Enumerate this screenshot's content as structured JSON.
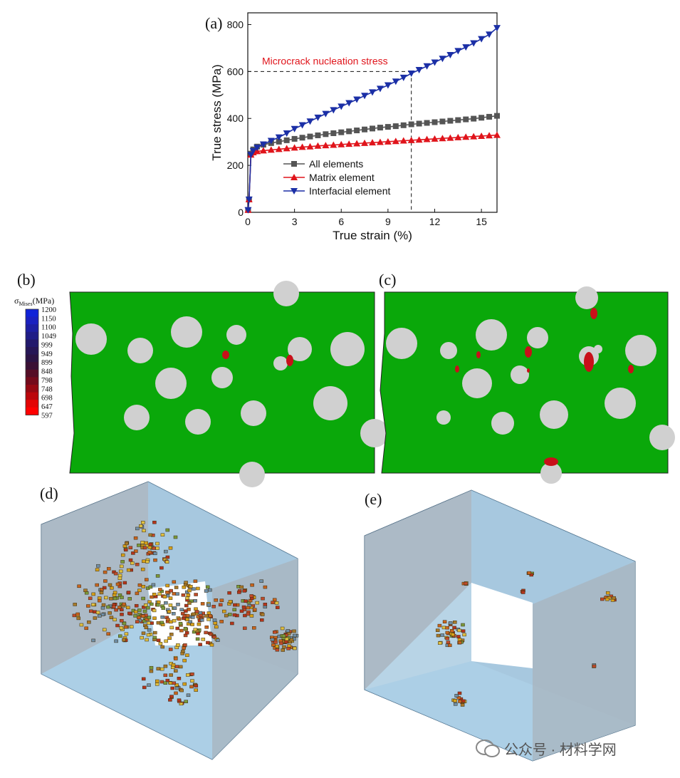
{
  "panels": {
    "a": "(a)",
    "b": "(b)",
    "c": "(c)",
    "d": "(d)",
    "e": "(e)"
  },
  "chart_data": {
    "type": "line",
    "xlabel": "True strain (%)",
    "ylabel": "True stress (MPa)",
    "xlim": [
      0,
      16
    ],
    "ylim": [
      0,
      850
    ],
    "xticks": [
      0,
      3,
      6,
      9,
      12,
      15
    ],
    "yticks": [
      0,
      200,
      400,
      600,
      800
    ],
    "grid": false,
    "legend_position": "lower-center",
    "annotation": {
      "text": "Microcrack nucleation stress",
      "stress": 600,
      "strain": 10.5,
      "color": "#e0141b"
    },
    "series": [
      {
        "name": "All elements",
        "color": "#555555",
        "marker": "square",
        "x": [
          0.02,
          0.08,
          0.2,
          0.35,
          0.6,
          1.0,
          1.5,
          2.0,
          2.5,
          3.0,
          3.5,
          4.0,
          4.5,
          5.0,
          5.5,
          6.0,
          6.5,
          7.0,
          7.5,
          8.0,
          8.5,
          9.0,
          9.5,
          10.0,
          10.5,
          11.0,
          11.5,
          12.0,
          12.5,
          13.0,
          13.5,
          14.0,
          14.5,
          15.0,
          15.5,
          16.0
        ],
        "y": [
          10,
          55,
          250,
          268,
          280,
          288,
          295,
          301,
          307,
          313,
          318,
          323,
          328,
          333,
          337,
          341,
          345,
          349,
          353,
          357,
          361,
          364,
          367,
          371,
          375,
          378,
          381,
          384,
          387,
          390,
          393,
          396,
          399,
          403,
          407,
          411
        ]
      },
      {
        "name": "Matrix element",
        "color": "#e0141b",
        "marker": "triangle-up",
        "x": [
          0.02,
          0.08,
          0.2,
          0.35,
          0.6,
          1.0,
          1.5,
          2.0,
          2.5,
          3.0,
          3.5,
          4.0,
          4.5,
          5.0,
          5.5,
          6.0,
          6.5,
          7.0,
          7.5,
          8.0,
          8.5,
          9.0,
          9.5,
          10.0,
          10.5,
          11.0,
          11.5,
          12.0,
          12.5,
          13.0,
          13.5,
          14.0,
          14.5,
          15.0,
          15.5,
          16.0
        ],
        "y": [
          10,
          55,
          245,
          255,
          260,
          263,
          266,
          269,
          272,
          275,
          278,
          280,
          283,
          285,
          287,
          289,
          291,
          293,
          295,
          297,
          299,
          301,
          303,
          305,
          307,
          309,
          311,
          313,
          315,
          317,
          319,
          321,
          323,
          325,
          327,
          329
        ]
      },
      {
        "name": "Interfacial element",
        "color": "#1b2fa6",
        "marker": "triangle-down",
        "x": [
          0.02,
          0.08,
          0.2,
          0.35,
          0.6,
          1.0,
          1.5,
          2.0,
          2.5,
          3.0,
          3.5,
          4.0,
          4.5,
          5.0,
          5.5,
          6.0,
          6.5,
          7.0,
          7.5,
          8.0,
          8.5,
          9.0,
          9.5,
          10.0,
          10.5,
          11.0,
          11.5,
          12.0,
          12.5,
          13.0,
          13.5,
          14.0,
          14.5,
          15.0,
          15.5,
          16.0
        ],
        "y": [
          10,
          55,
          245,
          262,
          276,
          290,
          305,
          320,
          337,
          356,
          372,
          388,
          404,
          420,
          436,
          451,
          466,
          481,
          497,
          512,
          527,
          542,
          558,
          574,
          592,
          607,
          623,
          639,
          655,
          671,
          688,
          704,
          721,
          739,
          758,
          786
        ]
      }
    ]
  },
  "colorbar": {
    "title_sym": "σ",
    "title_sub": "Mises",
    "title_unit": "(MPa)",
    "labels": [
      "1200",
      "1150",
      "1100",
      "1049",
      "999",
      "949",
      "899",
      "848",
      "798",
      "748",
      "698",
      "647",
      "597"
    ],
    "colors": [
      "#1022d8",
      "#1a20c0",
      "#1d1ea2",
      "#1f1c86",
      "#22196c",
      "#261656",
      "#2b1344",
      "#3a1034",
      "#550d26",
      "#740a1b",
      "#960812",
      "#bb060b",
      "#e30505",
      "#ff0000"
    ]
  },
  "watermark": {
    "text": "公众号 · 材料学网"
  }
}
